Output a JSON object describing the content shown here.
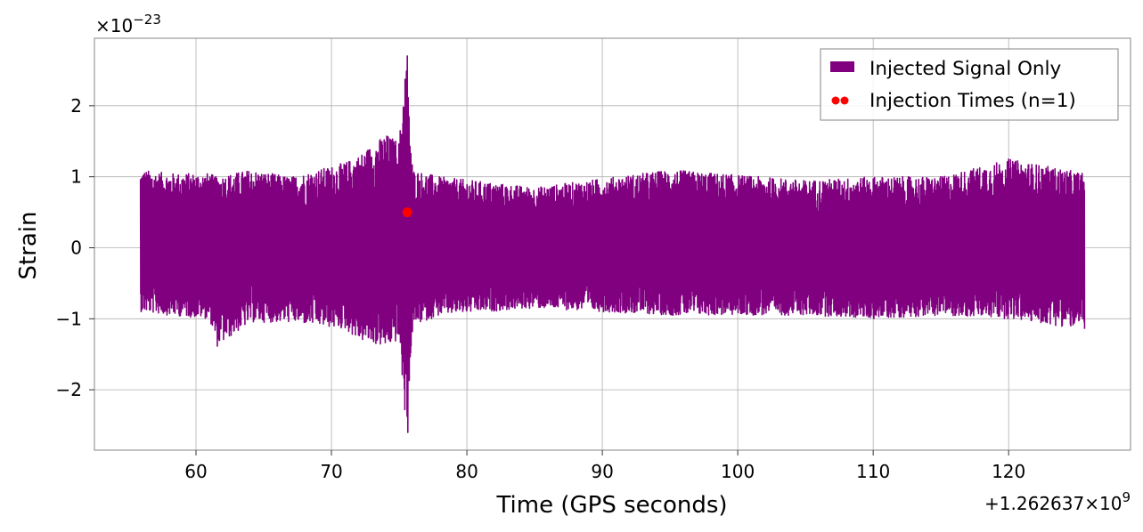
{
  "chart_data": {
    "type": "line",
    "title": "",
    "xlabel": "Time (GPS seconds)",
    "ylabel": "Strain",
    "x_offset_label": "+1.262637×10",
    "x_offset_exp": "9",
    "y_multiplier_label": "×10",
    "y_multiplier_exp": "−23",
    "xlim": [
      52.5,
      129
    ],
    "ylim": [
      -2.85,
      2.95
    ],
    "x_ticks": [
      60,
      70,
      80,
      90,
      100,
      110,
      120
    ],
    "x_tick_labels": [
      "60",
      "70",
      "80",
      "90",
      "100",
      "110",
      "120"
    ],
    "y_ticks": [
      -2,
      -1,
      0,
      1,
      2
    ],
    "y_tick_labels": [
      "−2",
      "−1",
      "0",
      "1",
      "2"
    ],
    "grid": true,
    "legend_position": "top-right",
    "series": [
      {
        "name": "Injected Signal Only",
        "color": "#800080",
        "kind": "line",
        "x_start": 55.9,
        "x_end": 125.6,
        "envelope": [
          {
            "x": 55.9,
            "low": -0.9,
            "high": 1.1
          },
          {
            "x": 58.0,
            "low": -0.95,
            "high": 1.05
          },
          {
            "x": 61.0,
            "low": -1.0,
            "high": 1.05
          },
          {
            "x": 61.5,
            "low": -1.4,
            "high": 1.0
          },
          {
            "x": 64.0,
            "low": -1.05,
            "high": 1.1
          },
          {
            "x": 67.0,
            "low": -1.05,
            "high": 1.0
          },
          {
            "x": 69.0,
            "low": -1.1,
            "high": 1.1
          },
          {
            "x": 71.0,
            "low": -1.15,
            "high": 1.2
          },
          {
            "x": 72.0,
            "low": -1.3,
            "high": 1.3
          },
          {
            "x": 74.0,
            "low": -1.4,
            "high": 1.6
          },
          {
            "x": 75.0,
            "low": -1.3,
            "high": 1.5
          },
          {
            "x": 75.5,
            "low": -2.6,
            "high": 2.7
          },
          {
            "x": 76.0,
            "low": -1.1,
            "high": 1.1
          },
          {
            "x": 78.0,
            "low": -0.95,
            "high": 1.0
          },
          {
            "x": 85.0,
            "low": -0.85,
            "high": 0.85
          },
          {
            "x": 95.0,
            "low": -0.95,
            "high": 1.1
          },
          {
            "x": 105.0,
            "low": -0.95,
            "high": 0.95
          },
          {
            "x": 110.0,
            "low": -1.0,
            "high": 1.0
          },
          {
            "x": 115.0,
            "low": -0.95,
            "high": 1.0
          },
          {
            "x": 120.0,
            "low": -1.0,
            "high": 1.25
          },
          {
            "x": 125.6,
            "low": -1.15,
            "high": 1.05
          }
        ],
        "peak": {
          "x": 75.6,
          "max": 2.7,
          "min": -2.6
        }
      },
      {
        "name": "Injection Times (n=1)",
        "color": "#ff0000",
        "kind": "scatter",
        "points": [
          {
            "x": 75.6,
            "y": 0.5
          }
        ]
      }
    ]
  }
}
